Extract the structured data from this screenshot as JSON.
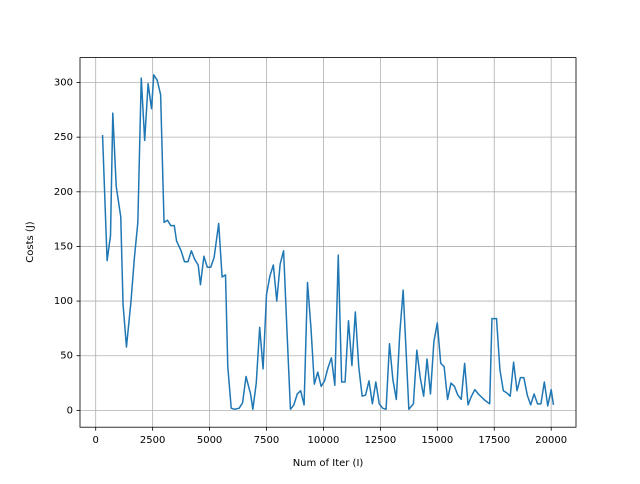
{
  "chart_data": {
    "type": "line",
    "xlabel": "Num of Iter (I)",
    "ylabel": "Costs (J)",
    "x": [
      300,
      500,
      650,
      750,
      900,
      1100,
      1200,
      1350,
      1550,
      1700,
      1850,
      2000,
      2150,
      2300,
      2450,
      2550,
      2700,
      2850,
      3000,
      3150,
      3300,
      3450,
      3550,
      3750,
      3900,
      4050,
      4200,
      4350,
      4500,
      4600,
      4750,
      4900,
      5050,
      5200,
      5400,
      5550,
      5700,
      5800,
      5950,
      6100,
      6300,
      6450,
      6600,
      6800,
      6900,
      7050,
      7200,
      7350,
      7500,
      7650,
      7800,
      7950,
      8100,
      8250,
      8400,
      8550,
      8700,
      8850,
      9000,
      9150,
      9300,
      9450,
      9600,
      9750,
      9900,
      10050,
      10200,
      10350,
      10500,
      10650,
      10800,
      10950,
      11100,
      11250,
      11400,
      11550,
      11700,
      11850,
      12000,
      12150,
      12300,
      12450,
      12600,
      12750,
      12900,
      13050,
      13200,
      13350,
      13500,
      13650,
      13750,
      13950,
      14100,
      14250,
      14400,
      14550,
      14700,
      14850,
      15000,
      15150,
      15300,
      15450,
      15600,
      15750,
      15900,
      16050,
      16200,
      16350,
      16500,
      16650,
      16800,
      16950,
      17100,
      17300,
      17400,
      17600,
      17750,
      17900,
      18050,
      18200,
      18350,
      18500,
      18650,
      18800,
      18950,
      19100,
      19250,
      19400,
      19550,
      19700,
      19850,
      20000,
      20100
    ],
    "series": [
      {
        "color": "#1f77b4",
        "values": [
          252,
          137,
          160,
          272,
          205,
          177,
          97,
          58,
          100,
          140,
          172,
          304,
          247,
          299,
          276,
          307,
          302,
          289,
          172,
          174,
          169,
          169,
          155,
          146,
          136,
          136,
          146,
          138,
          133,
          115,
          141,
          131,
          131,
          140,
          171,
          122,
          124,
          40,
          2,
          1,
          2,
          7,
          31,
          15,
          1,
          25,
          76,
          38,
          106,
          123,
          133,
          100,
          134,
          146,
          72,
          1,
          5,
          15,
          18,
          5,
          117,
          76,
          24,
          35,
          22,
          27,
          39,
          48,
          23,
          142,
          26,
          26,
          82,
          41,
          90,
          40,
          13,
          14,
          27,
          6,
          26,
          6,
          2,
          1,
          61,
          28,
          10,
          70,
          110,
          45,
          1,
          6,
          55,
          30,
          13,
          47,
          15,
          63,
          80,
          43,
          40,
          10,
          25,
          22,
          14,
          10,
          43,
          5,
          13,
          19,
          15,
          12,
          9,
          6,
          84,
          84,
          37,
          18,
          16,
          13,
          44,
          18,
          30,
          30,
          14,
          5,
          15,
          6,
          6,
          26,
          4,
          19,
          5
        ]
      }
    ],
    "xlim": [
      -690,
      21090
    ],
    "ylim": [
      -15.4,
      322.8
    ],
    "xticks": [
      0,
      2500,
      5000,
      7500,
      10000,
      12500,
      15000,
      17500,
      20000
    ],
    "yticks": [
      0,
      50,
      100,
      150,
      200,
      250,
      300
    ],
    "grid": true
  }
}
